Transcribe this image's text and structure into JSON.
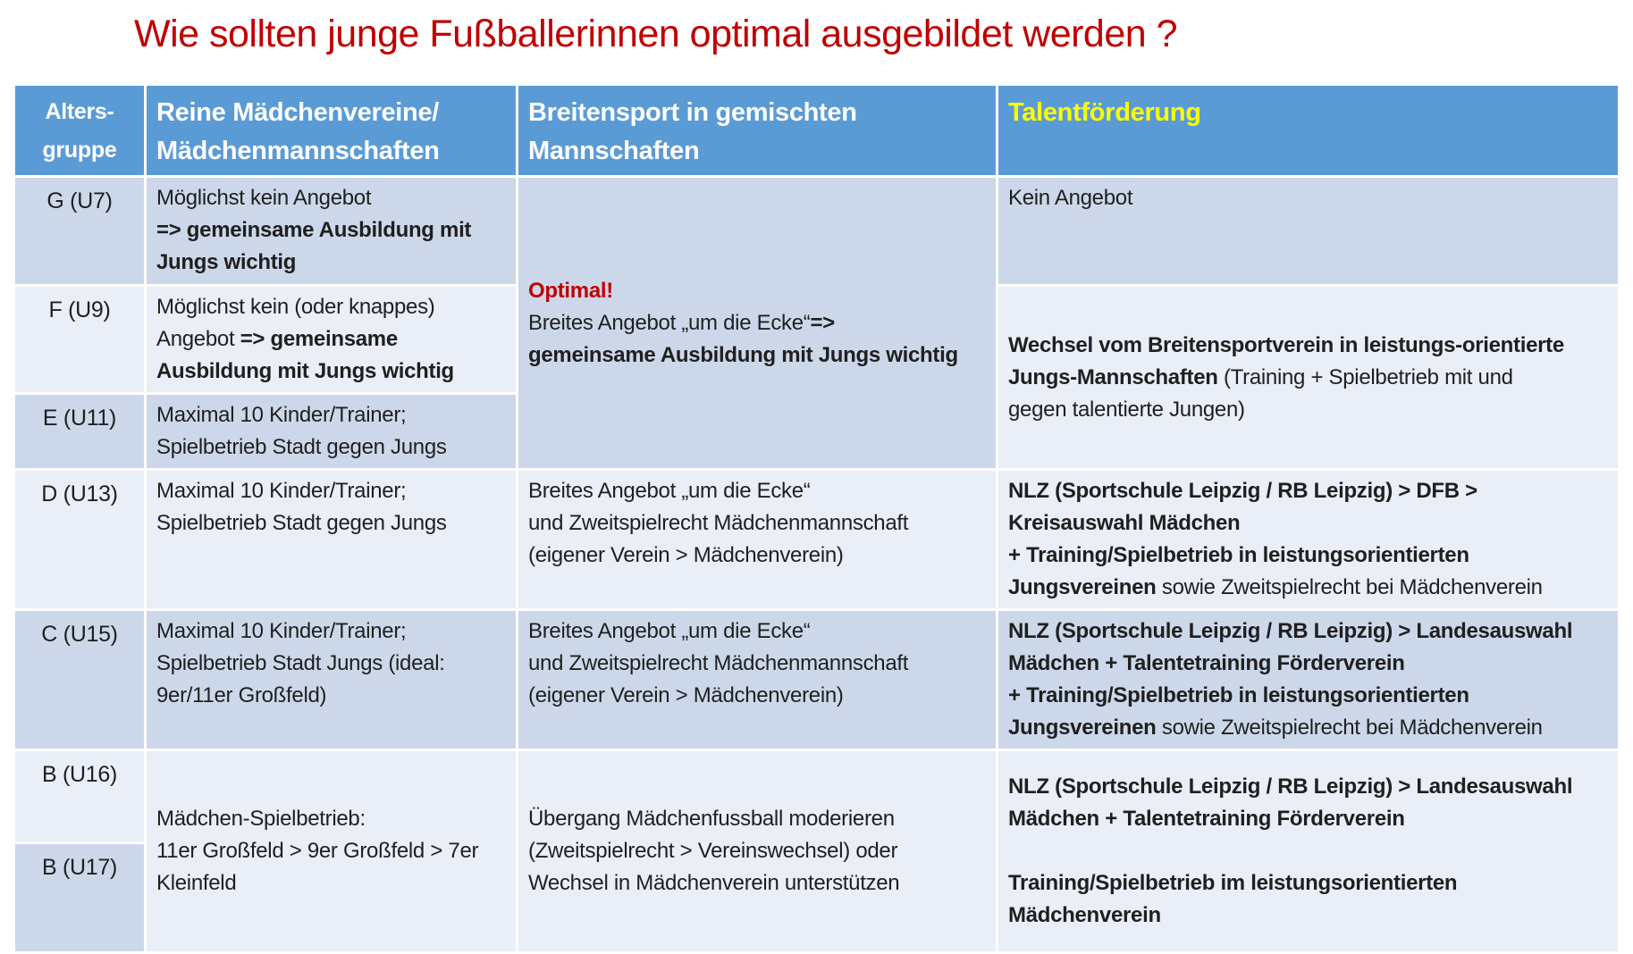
{
  "title": "Wie sollten junge Fußballerinnen optimal ausgebildet werden ?",
  "colors": {
    "title_red": "#c00000",
    "accent_red": "#c00000",
    "header_bg": "#5b9bd5",
    "header_text": "#ffffff",
    "talent_yellow": "#ffff00",
    "row_dark": "#ccd8ea",
    "row_light": "#e9eef7",
    "body_text": "#1f1f1f",
    "border_white": "#ffffff"
  },
  "table": {
    "columns": [
      "Alters-gruppe",
      "Reine Mädchenvereine/Mädchenmannschaften",
      "Breitensport in gemischten Mannschaften",
      "Talentförderung"
    ],
    "age_groups": [
      "G (U7)",
      "F (U9)",
      "E (U11)",
      "D (U13)",
      "C (U15)",
      "B (U16)",
      "B (U17)"
    ],
    "cells": {
      "h_alter": [
        [
          {
            "t": "Alters-"
          }
        ],
        [
          {
            "t": "gruppe"
          }
        ]
      ],
      "h_reine": [
        [
          {
            "t": "Reine Mädchenvereine/"
          }
        ],
        [
          {
            "t": "Mädchenmannschaften"
          }
        ]
      ],
      "h_breiten": [
        [
          {
            "t": "Breitensport in gemischten"
          }
        ],
        [
          {
            "t": "Mannschaften"
          }
        ]
      ],
      "h_talent": [
        [
          {
            "t": "Talentförderung",
            "c": "talent_yellow"
          }
        ]
      ],
      "g_label": [
        [
          {
            "t": "G (U7)"
          }
        ]
      ],
      "g_verein": [
        [
          {
            "t": "Möglichst kein Angebot"
          }
        ],
        [
          {
            "t": "=> gemeinsame Ausbildung mit",
            "b": true
          }
        ],
        [
          {
            "t": "Jungs wichtig",
            "b": true
          }
        ]
      ],
      "gfe_breiten": [
        [
          {
            "t": "Optimal!",
            "b": true,
            "c": "accent_red"
          }
        ],
        [
          {
            "t": "Breites Angebot „um die Ecke“"
          },
          {
            "t": "=>",
            "b": true
          }
        ],
        [
          {
            "t": "gemeinsame Ausbildung mit Jungs wichtig",
            "b": true
          }
        ]
      ],
      "g_talent": [
        [
          {
            "t": "Kein Angebot"
          }
        ]
      ],
      "f_label": [
        [
          {
            "t": "F (U9)"
          }
        ]
      ],
      "f_verein": [
        [
          {
            "t": "Möglichst kein (oder knappes)"
          }
        ],
        [
          {
            "t": "Angebot "
          },
          {
            "t": "=> gemeinsame",
            "b": true
          }
        ],
        [
          {
            "t": "Ausbildung mit Jungs wichtig",
            "b": true
          }
        ]
      ],
      "fe_talent": [
        [
          {
            "t": "Wechsel vom Breitensportverein in leistungs-orientierte",
            "b": true
          }
        ],
        [
          {
            "t": "Jungs-Mannschaften",
            "b": true
          },
          {
            "t": " (Training + Spielbetrieb mit und"
          }
        ],
        [
          {
            "t": "gegen talentierte Jungen)"
          }
        ]
      ],
      "e_label": [
        [
          {
            "t": "E (U11)"
          }
        ]
      ],
      "e_verein": [
        [
          {
            "t": "Maximal 10 Kinder/Trainer;"
          }
        ],
        [
          {
            "t": "Spielbetrieb Stadt gegen Jungs"
          }
        ]
      ],
      "d_label": [
        [
          {
            "t": "D (U13)"
          }
        ]
      ],
      "d_verein": [
        [
          {
            "t": "Maximal 10 Kinder/Trainer;"
          }
        ],
        [
          {
            "t": "Spielbetrieb Stadt gegen Jungs"
          }
        ]
      ],
      "d_breiten": [
        [
          {
            "t": "Breites Angebot „um die Ecke“"
          }
        ],
        [
          {
            "t": "und Zweitspielrecht Mädchenmannschaft"
          }
        ],
        [
          {
            "t": "(eigener Verein > Mädchenverein)"
          }
        ]
      ],
      "d_talent": [
        [
          {
            "t": "NLZ (Sportschule Leipzig / RB Leipzig) > DFB >",
            "b": true
          }
        ],
        [
          {
            "t": "Kreisauswahl Mädchen",
            "b": true
          }
        ],
        [
          {
            "t": "+ Training/Spielbetrieb in leistungsorientierten",
            "b": true
          }
        ],
        [
          {
            "t": "Jungsvereinen",
            "b": true
          },
          {
            "t": " sowie Zweitspielrecht bei Mädchenverein"
          }
        ]
      ],
      "c_label": [
        [
          {
            "t": "C (U15)"
          }
        ]
      ],
      "c_verein": [
        [
          {
            "t": "Maximal 10 Kinder/Trainer;"
          }
        ],
        [
          {
            "t": "Spielbetrieb Stadt Jungs (ideal:"
          }
        ],
        [
          {
            "t": "9er/11er Großfeld)"
          }
        ]
      ],
      "c_breiten": [
        [
          {
            "t": "Breites Angebot „um die Ecke“"
          }
        ],
        [
          {
            "t": "und Zweitspielrecht Mädchenmannschaft"
          }
        ],
        [
          {
            "t": "(eigener Verein > Mädchenverein)"
          }
        ]
      ],
      "c_talent": [
        [
          {
            "t": "NLZ (Sportschule Leipzig / RB Leipzig) > Landesauswahl",
            "b": true
          }
        ],
        [
          {
            "t": "Mädchen + Talentetraining Förderverein",
            "b": true
          }
        ],
        [
          {
            "t": "+ Training/Spielbetrieb in leistungsorientierten",
            "b": true
          }
        ],
        [
          {
            "t": "Jungsvereinen",
            "b": true
          },
          {
            "t": " sowie Zweitspielrecht bei Mädchenverein"
          }
        ]
      ],
      "b16_label": [
        [
          {
            "t": "B (U16)"
          }
        ]
      ],
      "b17_label": [
        [
          {
            "t": "B (U17)"
          }
        ]
      ],
      "b_verein": [
        [
          {
            "t": "Mädchen-Spielbetrieb:"
          }
        ],
        [
          {
            "t": "11er Großfeld > 9er Großfeld > 7er"
          }
        ],
        [
          {
            "t": "Kleinfeld"
          }
        ]
      ],
      "b_breiten": [
        [
          {
            "t": "Übergang Mädchenfussball moderieren"
          }
        ],
        [
          {
            "t": "(Zweitspielrecht > Vereinswechsel) oder"
          }
        ],
        [
          {
            "t": "Wechsel in Mädchenverein unterstützen"
          }
        ]
      ],
      "b_talent": [
        [
          {
            "t": "NLZ (Sportschule Leipzig / RB Leipzig) > Landesauswahl",
            "b": true
          }
        ],
        [
          {
            "t": "Mädchen + Talentetraining Förderverein",
            "b": true
          }
        ],
        [],
        [
          {
            "t": "Training/Spielbetrieb im leistungsorientierten",
            "b": true
          }
        ],
        [
          {
            "t": "Mädchenverein",
            "b": true
          }
        ]
      ]
    }
  }
}
